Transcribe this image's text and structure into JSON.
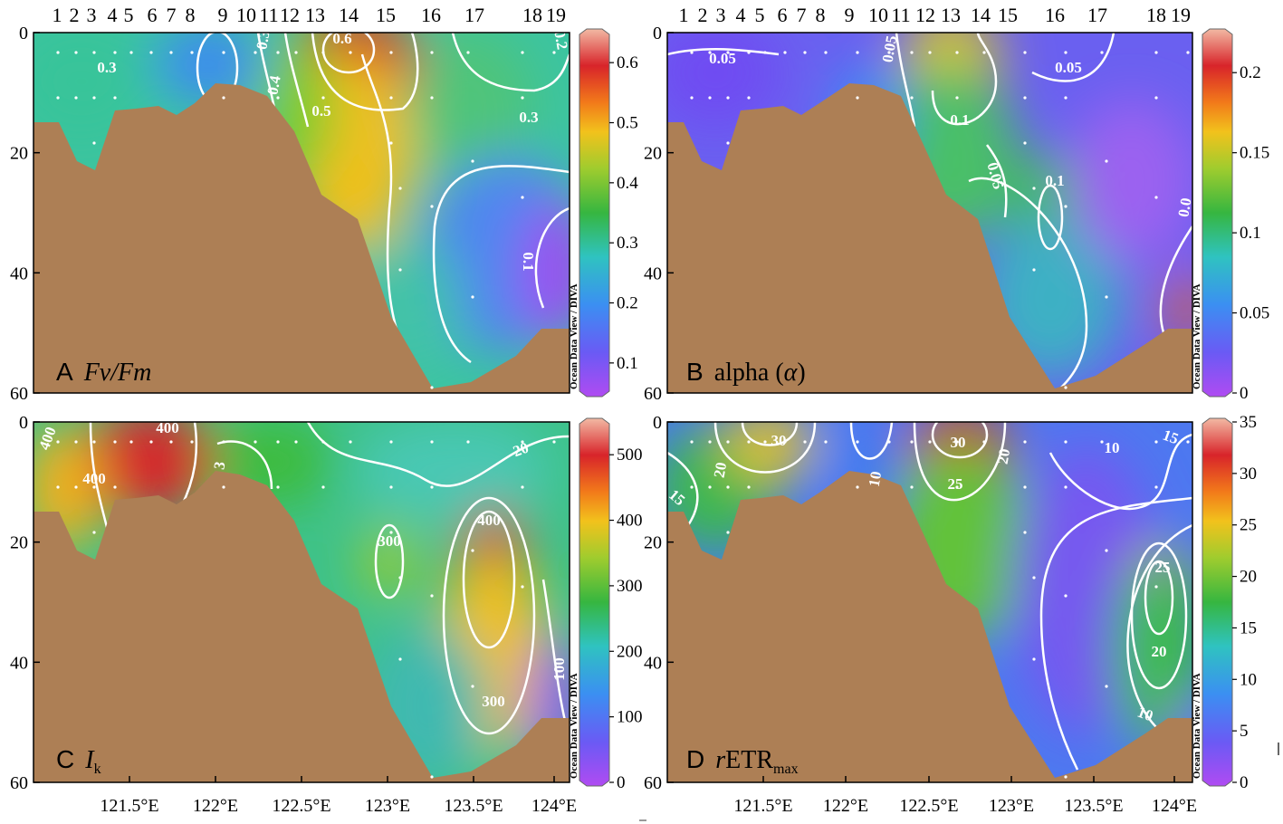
{
  "figure": {
    "panels": [
      {
        "letter": "A",
        "name": "Fv/Fm",
        "name_sub": "",
        "name_prefix_italic": ""
      },
      {
        "letter": "B",
        "name": "alpha (",
        "name_sub": "",
        "name_prefix_italic": "",
        "alpha_symbol": "α",
        "close": ")"
      },
      {
        "letter": "C",
        "name": "I",
        "name_sub": "k",
        "name_prefix_italic": ""
      },
      {
        "letter": "D",
        "name": "ETR",
        "name_sub": "max",
        "name_prefix_italic": "r"
      }
    ],
    "watermark": "Ocean Data View / DIVA",
    "station_labels": [
      "1",
      "2",
      "3",
      "4",
      "5",
      "6",
      "7",
      "8",
      "9",
      "10",
      "11",
      "12",
      "13",
      "14",
      "15",
      "16",
      "17",
      "18",
      "19"
    ],
    "depth_ticks": [
      "0",
      "20",
      "40",
      "60"
    ],
    "lon_ticks": [
      "121.5°E",
      "122°E",
      "122.5°E",
      "123°E",
      "123.5°E",
      "124°E"
    ],
    "colorbars": [
      {
        "panel": "A",
        "ticks": [
          "0.6",
          "0.5",
          "0.4",
          "0.3",
          "0.2",
          "0.1"
        ]
      },
      {
        "panel": "B",
        "ticks": [
          "0.2",
          "0.15",
          "0.1",
          "0.05",
          "0"
        ]
      },
      {
        "panel": "C",
        "ticks": [
          "500",
          "400",
          "300",
          "200",
          "100",
          "0"
        ]
      },
      {
        "panel": "D",
        "ticks": [
          "35",
          "30",
          "25",
          "20",
          "15",
          "10",
          "5",
          "0"
        ]
      }
    ],
    "contour_labels": {
      "A": [
        "0.3",
        "0.6",
        "0.3",
        "0.4",
        "0.5",
        "0.3",
        "0.1",
        "0.2"
      ],
      "B": [
        "0.05",
        "0.05",
        "0.05",
        "0.1",
        "0.05",
        "0.1",
        "0.0"
      ],
      "C": [
        "400",
        "400",
        "400",
        "3",
        "300",
        "400",
        "300",
        "20",
        "100"
      ],
      "D": [
        "30",
        "30",
        "20",
        "25",
        "20",
        "10",
        "15",
        "10",
        "25",
        "20",
        "10",
        "15"
      ]
    }
  },
  "chart_data": [
    {
      "type": "heatmap",
      "title": "A Fv/Fm",
      "xlabel": "",
      "ylabel": "",
      "x_ticks": [
        "121.5°E",
        "122°E",
        "122.5°E",
        "123°E",
        "123.5°E",
        "124°E"
      ],
      "y_ticks": [
        "0",
        "20",
        "40",
        "60"
      ],
      "ylim": [
        0,
        60
      ],
      "xlim": [
        121.05,
        124.05
      ],
      "colorbar_range": [
        0.05,
        0.65
      ],
      "colorbar_ticks": [
        0.1,
        0.2,
        0.3,
        0.4,
        0.5,
        0.6
      ],
      "contours": [
        0.1,
        0.2,
        0.3,
        0.4,
        0.5,
        0.6
      ],
      "stations": [
        "1",
        "2",
        "3",
        "4",
        "5",
        "6",
        "7",
        "8",
        "9",
        "10",
        "11",
        "12",
        "13",
        "14",
        "15",
        "16",
        "17",
        "18",
        "19"
      ]
    },
    {
      "type": "heatmap",
      "title": "B alpha (α)",
      "xlabel": "",
      "ylabel": "",
      "x_ticks": [
        "121.5°E",
        "122°E",
        "122.5°E",
        "123°E",
        "123.5°E",
        "124°E"
      ],
      "y_ticks": [
        "0",
        "20",
        "40",
        "60"
      ],
      "ylim": [
        0,
        60
      ],
      "colorbar_range": [
        0,
        0.225
      ],
      "colorbar_ticks": [
        0,
        0.05,
        0.1,
        0.15,
        0.2
      ],
      "contours": [
        0.05,
        0.1
      ]
    },
    {
      "type": "heatmap",
      "title": "C Ik",
      "xlabel": "",
      "ylabel": "",
      "x_ticks": [
        "121.5°E",
        "122°E",
        "122.5°E",
        "123°E",
        "123.5°E",
        "124°E"
      ],
      "y_ticks": [
        "0",
        "20",
        "40",
        "60"
      ],
      "ylim": [
        0,
        60
      ],
      "colorbar_range": [
        0,
        550
      ],
      "colorbar_ticks": [
        0,
        100,
        200,
        300,
        400,
        500
      ],
      "contours": [
        100,
        200,
        300,
        400
      ]
    },
    {
      "type": "heatmap",
      "title": "D rETRmax",
      "xlabel": "",
      "ylabel": "",
      "x_ticks": [
        "121.5°E",
        "122°E",
        "122.5°E",
        "123°E",
        "123.5°E",
        "124°E"
      ],
      "y_ticks": [
        "0",
        "20",
        "40",
        "60"
      ],
      "ylim": [
        0,
        60
      ],
      "colorbar_range": [
        0,
        35
      ],
      "colorbar_ticks": [
        0,
        5,
        10,
        15,
        20,
        25,
        30,
        35
      ],
      "contours": [
        10,
        15,
        20,
        25,
        30
      ]
    }
  ]
}
